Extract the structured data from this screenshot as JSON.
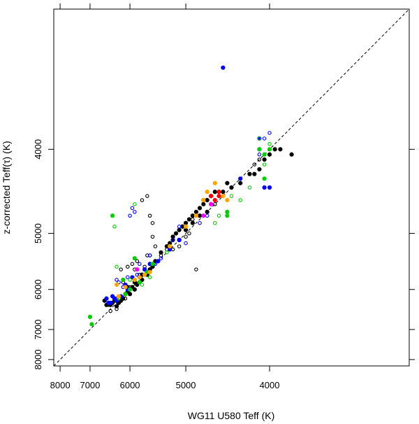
{
  "chart_data": {
    "type": "scatter",
    "xlabel": "WG11 U580 Teff (K)",
    "ylabel": "z-corrected Teff(τ) (K)",
    "x_reversed": true,
    "y_reversed": true,
    "y_scale": "reciprocal",
    "x_scale": "reciprocal",
    "xlim": [
      8250,
      3000
    ],
    "ylim": [
      8250,
      3000
    ],
    "x_ticks": [
      8000,
      7000,
      6000,
      5000,
      4000
    ],
    "y_ticks": [
      8000,
      7000,
      6000,
      5000,
      4000
    ],
    "identity_line": true,
    "grid": false,
    "legend": "none",
    "colors": {
      "black": "#000000",
      "blue": "#0000ff",
      "green": "#00cc00",
      "orange": "#ffa500",
      "red": "#ff0000",
      "magenta": "#ff00ff"
    },
    "series": [
      {
        "color": "black",
        "marker": "filled",
        "points": [
          [
            6600,
            6250
          ],
          [
            6550,
            6350
          ],
          [
            6400,
            6300
          ],
          [
            6300,
            6380
          ],
          [
            6250,
            6300
          ],
          [
            6150,
            6200
          ],
          [
            6100,
            6100
          ],
          [
            6050,
            6050
          ],
          [
            6000,
            6100
          ],
          [
            5950,
            5950
          ],
          [
            5900,
            6000
          ],
          [
            5850,
            5900
          ],
          [
            5800,
            5850
          ],
          [
            5750,
            5800
          ],
          [
            5700,
            5700
          ],
          [
            5650,
            5650
          ],
          [
            5600,
            5600
          ],
          [
            5550,
            5550
          ],
          [
            5500,
            5450
          ],
          [
            5400,
            5300
          ],
          [
            5300,
            5200
          ],
          [
            5250,
            5150
          ],
          [
            5200,
            5100
          ],
          [
            5150,
            5000
          ],
          [
            5100,
            4950
          ],
          [
            5050,
            4900
          ],
          [
            5000,
            4850
          ],
          [
            4950,
            4800
          ],
          [
            4900,
            4750
          ],
          [
            4850,
            4700
          ],
          [
            4800,
            4650
          ],
          [
            4750,
            4600
          ],
          [
            4700,
            4550
          ],
          [
            4650,
            4500
          ],
          [
            4600,
            4450
          ],
          [
            4550,
            4450
          ],
          [
            4500,
            4450
          ],
          [
            4450,
            4350
          ],
          [
            4400,
            4400
          ],
          [
            4300,
            4350
          ],
          [
            4200,
            4250
          ],
          [
            4150,
            4250
          ],
          [
            4100,
            4200
          ],
          [
            4050,
            4100
          ],
          [
            4000,
            4050
          ],
          [
            3950,
            4000
          ],
          [
            3900,
            4000
          ],
          [
            3800,
            4050
          ],
          [
            4750,
            4550
          ],
          [
            4800,
            4750
          ],
          [
            4900,
            4850
          ],
          [
            5000,
            4950
          ],
          [
            5100,
            5100
          ],
          [
            5200,
            5050
          ],
          [
            4700,
            4700
          ],
          [
            4650,
            4600
          ],
          [
            6050,
            5950
          ],
          [
            5900,
            5850
          ],
          [
            5750,
            5700
          ],
          [
            5650,
            5700
          ],
          [
            5800,
            5750
          ],
          [
            6200,
            6250
          ],
          [
            6350,
            6250
          ],
          [
            6450,
            6350
          ]
        ]
      },
      {
        "color": "black",
        "marker": "open",
        "points": [
          [
            6450,
            6500
          ],
          [
            6500,
            6350
          ],
          [
            6300,
            6200
          ],
          [
            6150,
            5850
          ],
          [
            6000,
            5950
          ],
          [
            5900,
            5600
          ],
          [
            5800,
            5700
          ],
          [
            5750,
            4550
          ],
          [
            5650,
            4500
          ],
          [
            5600,
            4750
          ],
          [
            5550,
            4850
          ],
          [
            5550,
            5050
          ],
          [
            5650,
            5350
          ],
          [
            5500,
            5200
          ],
          [
            5300,
            5250
          ],
          [
            5200,
            5250
          ],
          [
            5100,
            5200
          ],
          [
            5000,
            5050
          ],
          [
            4950,
            5000
          ],
          [
            4850,
            5600
          ],
          [
            4800,
            4750
          ],
          [
            4700,
            4700
          ],
          [
            4500,
            4500
          ],
          [
            4300,
            4300
          ],
          [
            4150,
            4150
          ],
          [
            4100,
            4100
          ],
          [
            6200,
            5600
          ],
          [
            6050,
            5550
          ],
          [
            5950,
            5500
          ],
          [
            5850,
            5450
          ],
          [
            5700,
            5550
          ],
          [
            5600,
            5350
          ],
          [
            4600,
            4600
          ],
          [
            4450,
            4350
          ],
          [
            4900,
            4800
          ],
          [
            5400,
            5350
          ],
          [
            6300,
            6450
          ],
          [
            6100,
            6200
          ]
        ]
      },
      {
        "color": "blue",
        "marker": "filled",
        "points": [
          [
            6550,
            6200
          ],
          [
            6500,
            6300
          ],
          [
            6400,
            6150
          ],
          [
            6350,
            6200
          ],
          [
            6300,
            6250
          ],
          [
            6200,
            6150
          ],
          [
            6100,
            5900
          ],
          [
            5900,
            5800
          ],
          [
            5800,
            5750
          ],
          [
            5700,
            5600
          ],
          [
            5600,
            5500
          ],
          [
            5450,
            5450
          ],
          [
            4500,
            3350
          ],
          [
            4300,
            4300
          ],
          [
            4100,
            4000
          ],
          [
            4050,
            4400
          ],
          [
            4000,
            4400
          ],
          [
            4100,
            3900
          ],
          [
            5250,
            5250
          ],
          [
            5100,
            5100
          ],
          [
            6050,
            6000
          ],
          [
            5950,
            5750
          ],
          [
            6450,
            6300
          ]
        ]
      },
      {
        "color": "blue",
        "marker": "open",
        "points": [
          [
            6300,
            5800
          ],
          [
            6250,
            5850
          ],
          [
            6150,
            5950
          ],
          [
            6050,
            5750
          ],
          [
            5950,
            4650
          ],
          [
            5850,
            5700
          ],
          [
            5700,
            5600
          ],
          [
            5600,
            5350
          ],
          [
            5500,
            5500
          ],
          [
            5400,
            5400
          ],
          [
            5200,
            5100
          ],
          [
            5100,
            4900
          ],
          [
            5000,
            5150
          ],
          [
            4800,
            4850
          ],
          [
            4700,
            4750
          ],
          [
            4050,
            3900
          ],
          [
            4000,
            3850
          ],
          [
            4100,
            4050
          ],
          [
            5900,
            4700
          ],
          [
            6000,
            4750
          ],
          [
            5800,
            5500
          ]
        ]
      },
      {
        "color": "green",
        "marker": "filled",
        "points": [
          [
            7000,
            6650
          ],
          [
            6950,
            6850
          ],
          [
            6400,
            4750
          ],
          [
            6100,
            6100
          ],
          [
            6000,
            6000
          ],
          [
            5800,
            5850
          ],
          [
            5650,
            5650
          ],
          [
            5550,
            5500
          ],
          [
            4450,
            4750
          ],
          [
            4450,
            4700
          ],
          [
            4100,
            4000
          ],
          [
            4050,
            4050
          ],
          [
            4000,
            4000
          ],
          [
            4050,
            4300
          ],
          [
            6150,
            5800
          ],
          [
            5900,
            5400
          ]
        ]
      },
      {
        "color": "green",
        "marker": "open",
        "points": [
          [
            6350,
            4900
          ],
          [
            6300,
            5550
          ],
          [
            6250,
            6200
          ],
          [
            6000,
            5800
          ],
          [
            5900,
            4600
          ],
          [
            5750,
            5900
          ],
          [
            5300,
            5300
          ],
          [
            4600,
            4850
          ],
          [
            4550,
            4750
          ],
          [
            4300,
            4550
          ],
          [
            4200,
            4400
          ],
          [
            4050,
            4150
          ],
          [
            4000,
            3950
          ],
          [
            4100,
            3900
          ],
          [
            5600,
            5750
          ],
          [
            4400,
            4500
          ]
        ]
      },
      {
        "color": "orange",
        "marker": "filled",
        "points": [
          [
            6300,
            5900
          ],
          [
            6100,
            5950
          ],
          [
            5900,
            5800
          ],
          [
            5800,
            5750
          ],
          [
            5600,
            5650
          ],
          [
            5250,
            5200
          ],
          [
            5000,
            4900
          ],
          [
            4850,
            4750
          ],
          [
            4750,
            4550
          ],
          [
            4700,
            4450
          ],
          [
            4600,
            4350
          ],
          [
            4500,
            4500
          ],
          [
            4450,
            4550
          ],
          [
            6250,
            6150
          ],
          [
            5700,
            5700
          ],
          [
            4650,
            4600
          ]
        ]
      },
      {
        "color": "red",
        "marker": "filled",
        "points": [
          [
            4650,
            4500
          ],
          [
            4600,
            4550
          ],
          [
            4550,
            4450
          ],
          [
            4550,
            4500
          ]
        ]
      },
      {
        "color": "magenta",
        "marker": "filled",
        "points": [
          [
            5850,
            5600
          ],
          [
            4750,
            4750
          ],
          [
            4650,
            4600
          ]
        ]
      }
    ]
  }
}
